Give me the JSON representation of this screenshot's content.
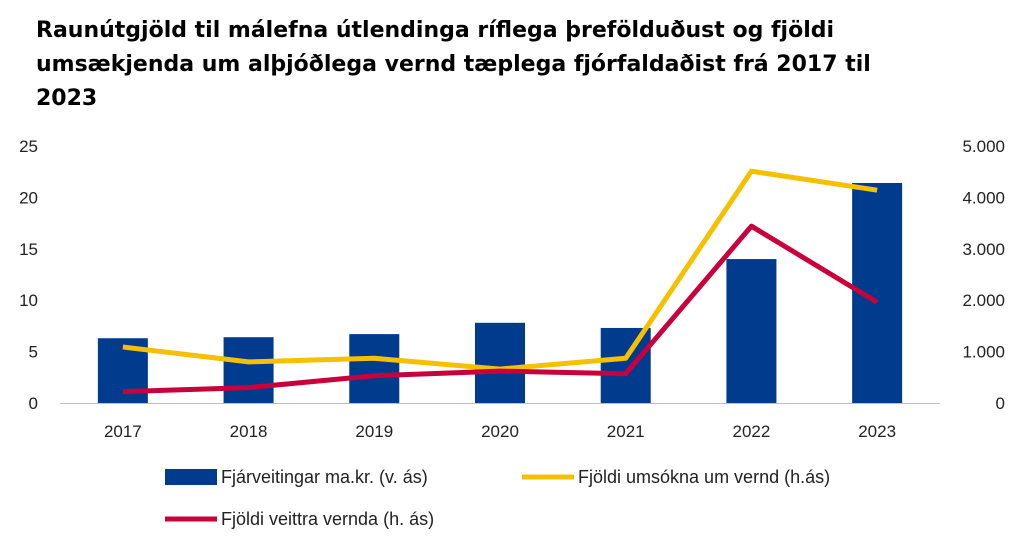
{
  "chart_data": {
    "type": "bar+line",
    "title": "Raunútgjöld til málefna útlendinga ríflega þrefölduðust og fjöldi umsækjenda um alþjóðlega vernd tæplega fjórfaldaðist frá 2017 til 2023",
    "categories": [
      "2017",
      "2018",
      "2019",
      "2020",
      "2021",
      "2022",
      "2023"
    ],
    "left_axis": {
      "ylim": [
        0,
        25
      ],
      "ticks": [
        "0",
        "5",
        "10",
        "15",
        "20",
        "25"
      ],
      "tick_values": [
        0,
        5,
        10,
        15,
        20,
        25
      ]
    },
    "right_axis": {
      "ylim": [
        0,
        5000
      ],
      "ticks": [
        "0",
        "1.000",
        "2.000",
        "3.000",
        "4.000",
        "5.000"
      ],
      "tick_values": [
        0,
        1000,
        2000,
        3000,
        4000,
        5000
      ]
    },
    "series": [
      {
        "name": "Fjárveitingar ma.kr. (v. ás)",
        "kind": "bar",
        "axis": "left",
        "color": "#003b8e",
        "values": [
          6.3,
          6.4,
          6.7,
          7.8,
          7.3,
          14.0,
          21.4
        ]
      },
      {
        "name": "Fjöldi umsókna um vernd (h.ás)",
        "kind": "line",
        "axis": "right",
        "color": "#f5c000",
        "values": [
          1090,
          800,
          870,
          660,
          870,
          4510,
          4140
        ]
      },
      {
        "name": "Fjöldi veittra vernda (h. ás)",
        "kind": "line",
        "axis": "right",
        "color": "#c8003c",
        "values": [
          220,
          300,
          530,
          620,
          570,
          3440,
          1960
        ]
      }
    ],
    "legend_position": "bottom",
    "grid": false
  }
}
